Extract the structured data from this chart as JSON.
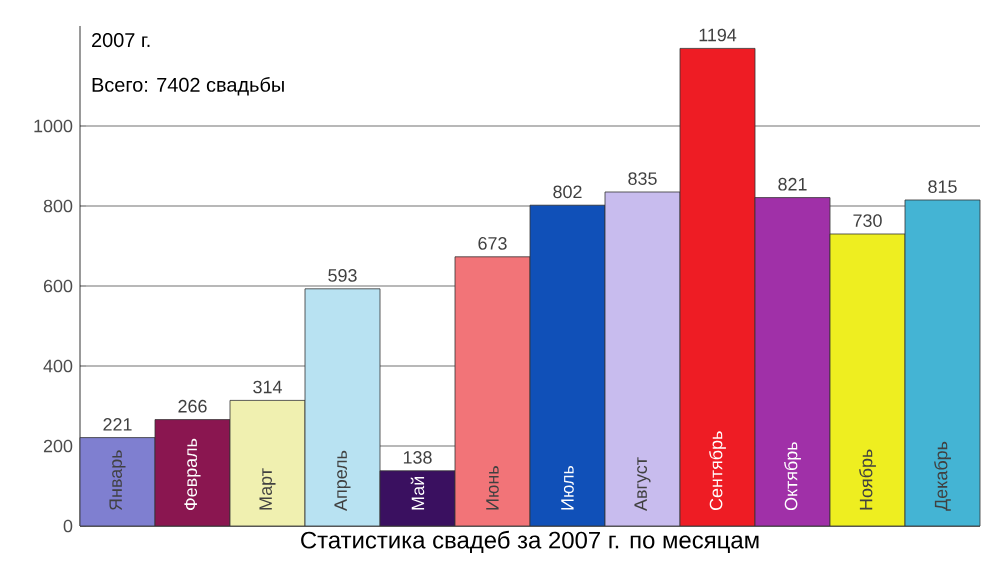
{
  "chart_data": {
    "type": "bar",
    "xlabel": "Статистика свадеб за 2007 г. по месяцам",
    "annotations": [
      "2007 г.",
      "Всего: 7402 свадьбы"
    ],
    "categories": [
      "Январь",
      "Февраль",
      "Март",
      "Апрель",
      "Май",
      "Июнь",
      "Июль",
      "Август",
      "Сентябрь",
      "Октябрь",
      "Ноябрь",
      "Декабрь"
    ],
    "values": [
      221,
      266,
      314,
      593,
      138,
      673,
      802,
      835,
      1194,
      821,
      730,
      815
    ],
    "colors": [
      "#7f7fd0",
      "#8a1650",
      "#f0f0b0",
      "#b8e2f2",
      "#3a1060",
      "#f27478",
      "#1050b8",
      "#c8bcee",
      "#ee1c24",
      "#a030a8",
      "#eeee20",
      "#44b4d4"
    ],
    "ylim": [
      0,
      1250
    ],
    "yticks": [
      0,
      200,
      400,
      600,
      800,
      1000
    ],
    "grid": "y",
    "data_labels": true
  }
}
